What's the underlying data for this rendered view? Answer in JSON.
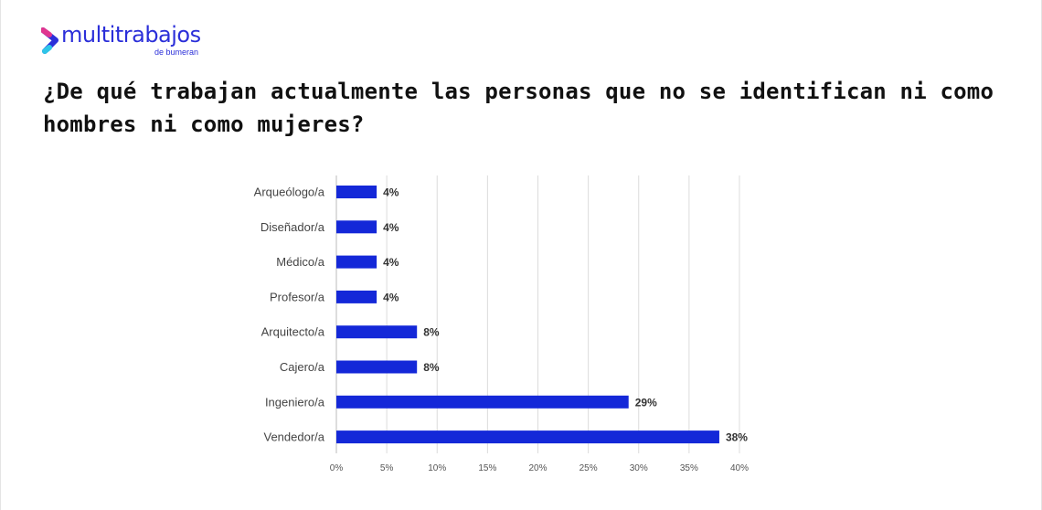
{
  "brand": {
    "name": "multitrabajos",
    "sub": "de bumeran",
    "color": "#2b2fd9"
  },
  "title": "¿De qué trabajan actualmente las personas que no se identifican ni como hombres ni como mujeres?",
  "chart_data": {
    "type": "bar",
    "orientation": "horizontal",
    "title": "¿De qué trabajan actualmente las personas que no se identifican ni como hombres ni como mujeres?",
    "categories": [
      "Arqueólogo/a",
      "Diseñador/a",
      "Médico/a",
      "Profesor/a",
      "Arquitecto/a",
      "Cajero/a",
      "Ingeniero/a",
      "Vendedor/a"
    ],
    "values": [
      4,
      4,
      4,
      4,
      8,
      8,
      29,
      38
    ],
    "labels": [
      "4%",
      "4%",
      "4%",
      "4%",
      "8%",
      "8%",
      "29%",
      "38%"
    ],
    "xlim": [
      0,
      40
    ],
    "ticks": [
      0,
      5,
      10,
      15,
      20,
      25,
      30,
      35,
      40
    ],
    "tick_labels": [
      "0%",
      "5%",
      "10%",
      "15%",
      "20%",
      "25%",
      "30%",
      "35%",
      "40%"
    ],
    "grid": true,
    "bar_color": "#1428d8"
  }
}
